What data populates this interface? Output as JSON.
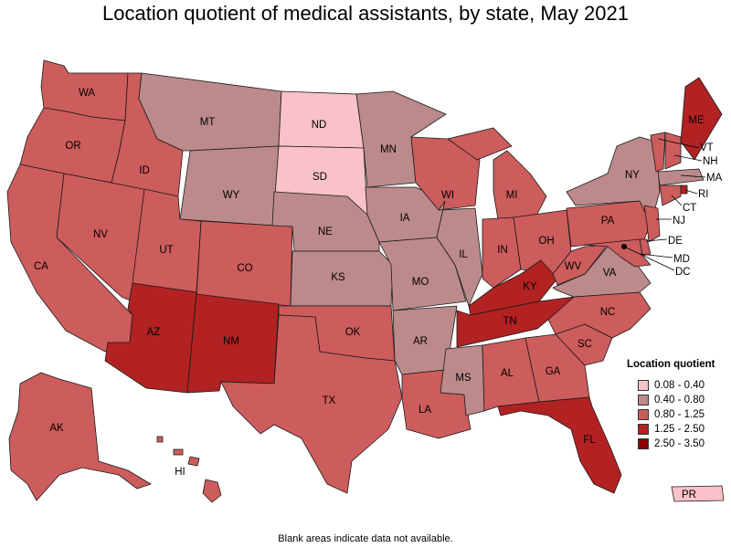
{
  "title": "Location quotient of medical assistants, by state, May 2021",
  "footnote": "Blank areas indicate data not available.",
  "legend": {
    "title": "Location quotient",
    "items": [
      {
        "label": "0.08 - 0.40",
        "color": "#f9c2c8"
      },
      {
        "label": "0.40 - 0.80",
        "color": "#bc8a8a"
      },
      {
        "label": "0.80 - 1.25",
        "color": "#cd5c5c"
      },
      {
        "label": "1.25 - 2.50",
        "color": "#b22222"
      },
      {
        "label": "2.50 - 3.50",
        "color": "#8b0000"
      }
    ]
  },
  "chart_data": {
    "type": "choropleth",
    "title": "Location quotient of medical assistants, by state, May 2021",
    "states": {
      "WA": "0.80 - 1.25",
      "OR": "0.80 - 1.25",
      "CA": "0.80 - 1.25",
      "NV": "0.80 - 1.25",
      "ID": "0.80 - 1.25",
      "MT": "0.40 - 0.80",
      "WY": "0.40 - 0.80",
      "UT": "0.80 - 1.25",
      "AZ": "1.25 - 2.50",
      "CO": "0.80 - 1.25",
      "NM": "1.25 - 2.50",
      "ND": "0.08 - 0.40",
      "SD": "0.08 - 0.40",
      "NE": "0.40 - 0.80",
      "KS": "0.40 - 0.80",
      "OK": "0.80 - 1.25",
      "TX": "0.80 - 1.25",
      "MN": "0.40 - 0.80",
      "IA": "0.40 - 0.80",
      "MO": "0.40 - 0.80",
      "AR": "0.40 - 0.80",
      "LA": "0.80 - 1.25",
      "WI": "0.80 - 1.25",
      "IL": "0.40 - 0.80",
      "MS": "0.40 - 0.80",
      "MI": "0.80 - 1.25",
      "IN": "0.80 - 1.25",
      "OH": "0.80 - 1.25",
      "KY": "1.25 - 2.50",
      "TN": "1.25 - 2.50",
      "AL": "0.80 - 1.25",
      "GA": "0.80 - 1.25",
      "FL": "1.25 - 2.50",
      "SC": "0.80 - 1.25",
      "NC": "0.80 - 1.25",
      "VA": "0.40 - 0.80",
      "WV": "0.80 - 1.25",
      "PA": "0.80 - 1.25",
      "NY": "0.40 - 0.80",
      "ME": "1.25 - 2.50",
      "VT": "0.80 - 1.25",
      "NH": "0.80 - 1.25",
      "MA": "0.40 - 0.80",
      "RI": "1.25 - 2.50",
      "CT": "0.80 - 1.25",
      "NJ": "0.80 - 1.25",
      "DE": "0.80 - 1.25",
      "MD": "0.80 - 1.25",
      "DC": "0.40 - 0.80",
      "AK": "0.80 - 1.25",
      "HI": "0.80 - 1.25",
      "PR": "0.08 - 0.40"
    }
  }
}
